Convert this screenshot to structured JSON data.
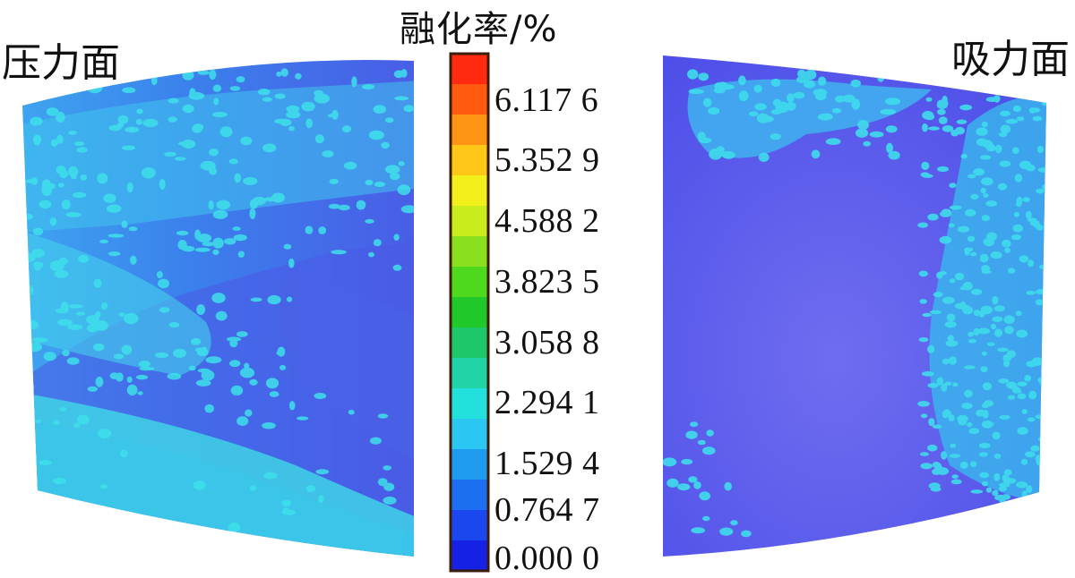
{
  "colorbar": {
    "title": "融化率/%",
    "ticks": [
      "6.117 6",
      "5.352 9",
      "4.588 2",
      "3.823 5",
      "3.058 8",
      "2.294 1",
      "1.529 4",
      "0.764 7",
      "0.000 0"
    ],
    "colors": [
      "#ff2a10",
      "#ff5a10",
      "#ff9414",
      "#ffc818",
      "#f3ef1c",
      "#c8ec1c",
      "#8ae01e",
      "#4ed81e",
      "#21c82a",
      "#1ec76a",
      "#20d4a8",
      "#22e0dc",
      "#2cc6f2",
      "#1f9cf0",
      "#1c6ff0",
      "#1a47ee",
      "#1522e6"
    ]
  },
  "panels": {
    "pressure_side": "压力面",
    "suction_side": "吸力面"
  }
}
